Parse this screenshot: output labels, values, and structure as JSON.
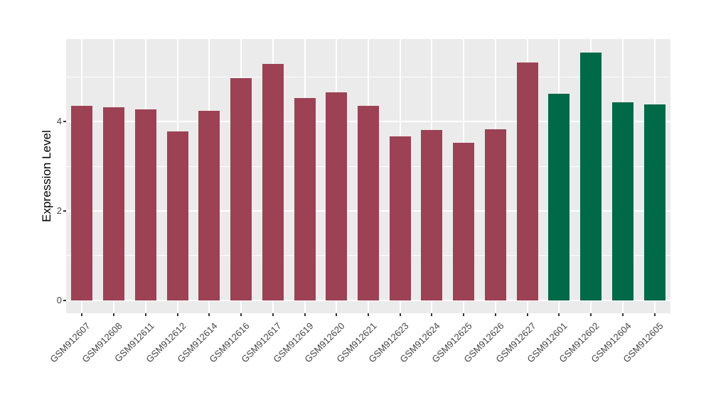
{
  "chart_data": {
    "type": "bar",
    "title": "",
    "xlabel": "",
    "ylabel": "Expression Level",
    "categories": [
      "GSM912607",
      "GSM912608",
      "GSM912611",
      "GSM912612",
      "GSM912614",
      "GSM912616",
      "GSM912617",
      "GSM912619",
      "GSM912620",
      "GSM912621",
      "GSM912623",
      "GSM912624",
      "GSM912625",
      "GSM912626",
      "GSM912627",
      "GSM912601",
      "GSM912602",
      "GSM912604",
      "GSM912605"
    ],
    "values": [
      4.36,
      4.32,
      4.27,
      3.78,
      4.25,
      4.97,
      5.29,
      4.53,
      4.66,
      4.36,
      3.67,
      3.82,
      3.52,
      3.83,
      5.33,
      4.63,
      5.55,
      4.43,
      4.38
    ],
    "bar_colors": [
      "#9C4254",
      "#9C4254",
      "#9C4254",
      "#9C4254",
      "#9C4254",
      "#9C4254",
      "#9C4254",
      "#9C4254",
      "#9C4254",
      "#9C4254",
      "#9C4254",
      "#9C4254",
      "#9C4254",
      "#9C4254",
      "#9C4254",
      "#006948",
      "#006948",
      "#006948",
      "#006948"
    ],
    "yticks": [
      0,
      2,
      4
    ],
    "minor_yticks": [
      1,
      3,
      5
    ],
    "ylim": [
      -0.29,
      5.85
    ],
    "grid": true,
    "legend_position": "none",
    "panel_bg": "#EBEBEB",
    "grid_color": "#FFFFFF",
    "axis_text_color": "#444444",
    "axis_title_color": "#000000",
    "tick_mark_color": "#333333"
  }
}
